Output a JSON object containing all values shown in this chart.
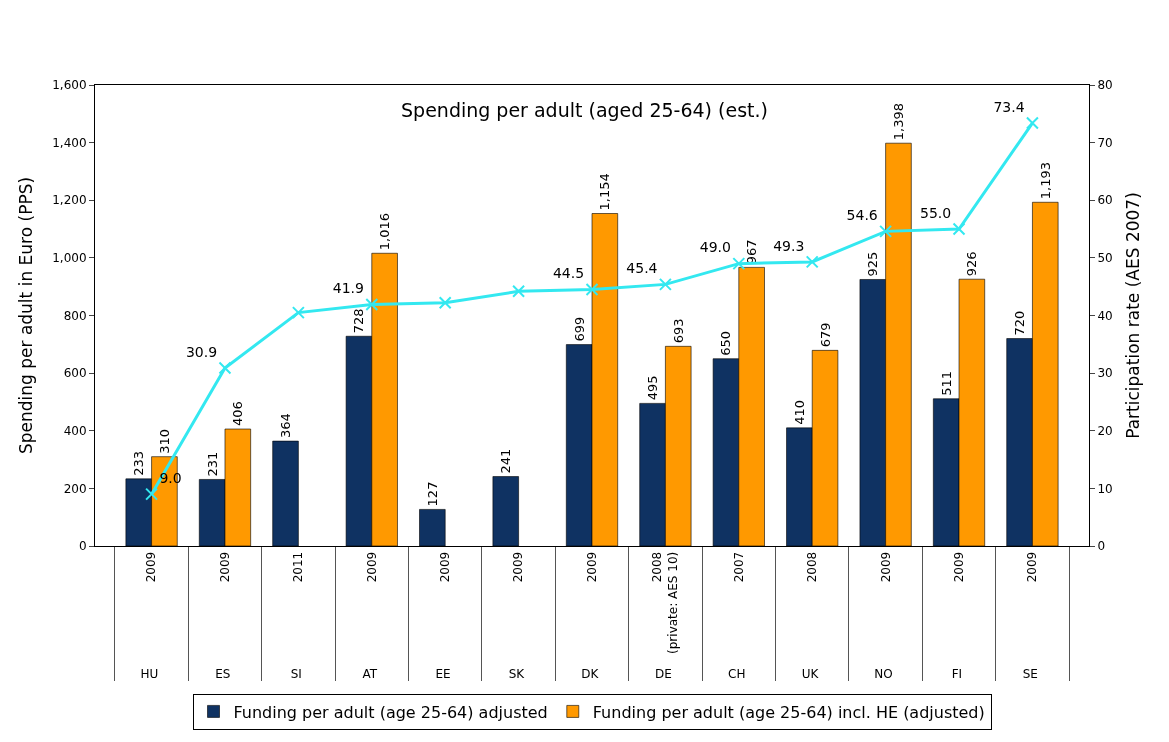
{
  "chart_data": {
    "type": "bar",
    "title": "Spending per adult (aged 25-64) (est.)",
    "categories": [
      "2009\nHU",
      "2009\nES",
      "2011\nSI",
      "2009\nAT",
      "2009\nEE",
      "2009\nSK",
      "2009\nDK",
      "2008\n(private: AES 10)\nDE",
      "2007\nCH",
      "2008\nUK",
      "2009\nNO",
      "2009\nFI",
      "2009\nSE"
    ],
    "series": [
      {
        "name": "Funding per adult (age 25-64) adjusted",
        "color": "#0f3262",
        "values": [
          233,
          231,
          364,
          728,
          127,
          241,
          699,
          495,
          650,
          410,
          925,
          511,
          720
        ],
        "value_labels": [
          "233",
          "231",
          "364",
          "728",
          "127",
          "241",
          "699",
          "495",
          "650",
          "410",
          "925",
          "511",
          "720"
        ]
      },
      {
        "name": "Funding per adult (age 25-64) incl. HE (adjusted)",
        "color": "#ff9900",
        "values": [
          310,
          406,
          null,
          1016,
          null,
          null,
          1154,
          693,
          967,
          679,
          1398,
          926,
          1193
        ],
        "value_labels": [
          "310",
          "406",
          null,
          "1,016",
          null,
          null,
          "1,154",
          "693",
          "967",
          "679",
          "1,398",
          "926",
          "1,193"
        ]
      },
      {
        "type": "line",
        "axis": "y2",
        "color": "#33e8f0",
        "marker": "cross",
        "values": [
          9.0,
          30.9,
          40.5,
          41.9,
          42.2,
          44.2,
          44.5,
          45.4,
          49.0,
          49.3,
          54.6,
          55.0,
          73.4
        ],
        "value_labels": [
          "9.0",
          "30.9",
          null,
          "41.9",
          null,
          null,
          "44.5",
          "45.4",
          "49.0",
          "49.3",
          "54.6",
          "55.0",
          "73.4"
        ]
      }
    ],
    "ylabel": "Spending per adult in Euro (PPS)",
    "y2label": "Participation rate (AES 2007)",
    "ylim": [
      0,
      1600
    ],
    "yticks": [
      0,
      200,
      400,
      600,
      800,
      {
        "value": 1000,
        "label": "1,000"
      },
      {
        "value": 1200,
        "label": "1,200"
      },
      {
        "value": 1400,
        "label": "1,400"
      },
      {
        "value": 1600,
        "label": "1,600"
      }
    ],
    "y2lim": [
      0,
      80
    ],
    "y2ticks": [
      0,
      10,
      20,
      30,
      40,
      50,
      60,
      70,
      80
    ],
    "legend": "bottom"
  }
}
